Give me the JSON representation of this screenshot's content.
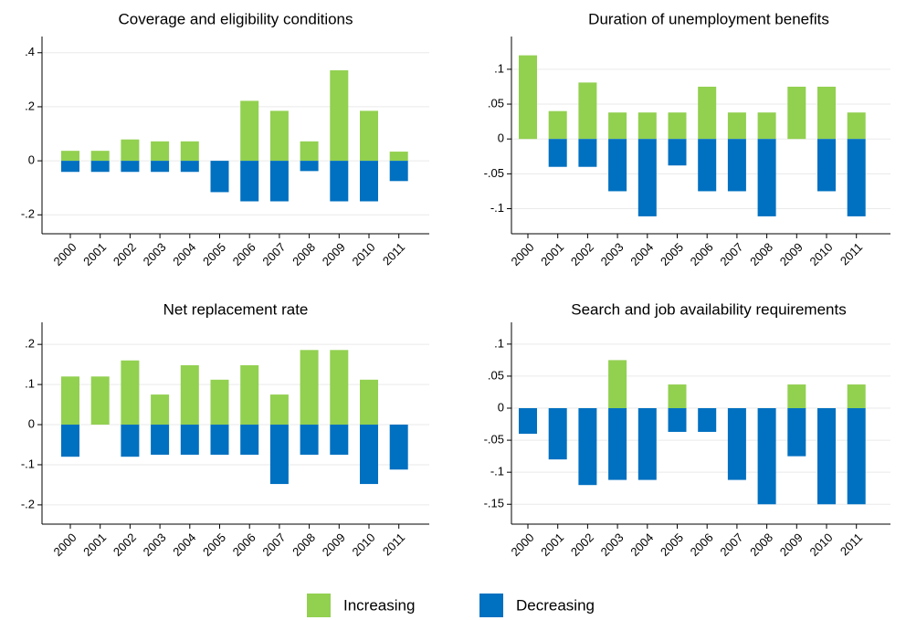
{
  "chart_data": [
    {
      "type": "bar",
      "title": "Coverage and eligibility conditions",
      "categories": [
        "2000",
        "2001",
        "2002",
        "2003",
        "2004",
        "2005",
        "2006",
        "2007",
        "2008",
        "2009",
        "2010",
        "2011"
      ],
      "series": [
        {
          "values": [
            0.037,
            0.037,
            0.079,
            0.072,
            0.072,
            0,
            0.222,
            0.185,
            0.072,
            0.335,
            0.185,
            0.034
          ]
        },
        {
          "values": [
            -0.041,
            -0.041,
            -0.041,
            -0.041,
            -0.041,
            -0.116,
            -0.15,
            -0.15,
            -0.038,
            -0.15,
            -0.15,
            -0.075
          ]
        }
      ],
      "ylim": [
        -0.27,
        0.46
      ],
      "yticks": [
        {
          "value": -0.2,
          "label": "-.2"
        },
        0,
        {
          "value": 0.2,
          "label": ".2"
        },
        {
          "value": 0.4,
          "label": ".4"
        }
      ],
      "grid": true
    },
    {
      "type": "bar",
      "title": "Duration of unemployment benefits",
      "categories": [
        "2000",
        "2001",
        "2002",
        "2003",
        "2004",
        "2005",
        "2006",
        "2007",
        "2008",
        "2009",
        "2010",
        "2011"
      ],
      "series": [
        {
          "values": [
            0.12,
            0.04,
            0.081,
            0.038,
            0.038,
            0.038,
            0.075,
            0.038,
            0.038,
            0.075,
            0.075,
            0.038
          ]
        },
        {
          "values": [
            0,
            -0.04,
            -0.04,
            -0.075,
            -0.111,
            -0.038,
            -0.075,
            -0.075,
            -0.111,
            0,
            -0.075,
            -0.111
          ]
        }
      ],
      "ylim": [
        -0.136,
        0.147
      ],
      "yticks": [
        {
          "value": -0.1,
          "label": "-.1"
        },
        {
          "value": -0.05,
          "label": "-.05"
        },
        0,
        {
          "value": 0.05,
          "label": ".05"
        },
        {
          "value": 0.1,
          "label": ".1"
        }
      ],
      "grid": true
    },
    {
      "type": "bar",
      "title": "Net replacement rate",
      "categories": [
        "2000",
        "2001",
        "2002",
        "2003",
        "2004",
        "2005",
        "2006",
        "2007",
        "2008",
        "2009",
        "2010",
        "2011"
      ],
      "series": [
        {
          "values": [
            0.12,
            0.12,
            0.16,
            0.075,
            0.148,
            0.112,
            0.148,
            0.075,
            0.186,
            0.186,
            0.112,
            0
          ]
        },
        {
          "values": [
            -0.08,
            0,
            -0.08,
            -0.075,
            -0.075,
            -0.075,
            -0.075,
            -0.148,
            -0.075,
            -0.075,
            -0.148,
            -0.112
          ]
        }
      ],
      "ylim": [
        -0.248,
        0.255
      ],
      "yticks": [
        {
          "value": -0.2,
          "label": "-.2"
        },
        {
          "value": -0.1,
          "label": "-.1"
        },
        0,
        {
          "value": 0.1,
          "label": ".1"
        },
        {
          "value": 0.2,
          "label": ".2"
        }
      ],
      "grid": true
    },
    {
      "type": "bar",
      "title": "Search and job availability requirements",
      "categories": [
        "2000",
        "2001",
        "2002",
        "2003",
        "2004",
        "2005",
        "2006",
        "2007",
        "2008",
        "2009",
        "2010",
        "2011"
      ],
      "series": [
        {
          "values": [
            0,
            0,
            0,
            0.075,
            0,
            0.037,
            0,
            0,
            0,
            0.037,
            0,
            0.037
          ]
        },
        {
          "values": [
            -0.04,
            -0.08,
            -0.12,
            -0.112,
            -0.112,
            -0.037,
            -0.037,
            -0.112,
            -0.15,
            -0.075,
            -0.15,
            -0.15
          ]
        }
      ],
      "ylim": [
        -0.181,
        0.134
      ],
      "yticks": [
        {
          "value": -0.15,
          "label": "-.15"
        },
        {
          "value": -0.1,
          "label": "-.1"
        },
        {
          "value": -0.05,
          "label": "-.05"
        },
        0,
        {
          "value": 0.05,
          "label": ".05"
        },
        {
          "value": 0.1,
          "label": ".1"
        }
      ],
      "grid": true
    }
  ],
  "legend": [
    {
      "name": "Increasing",
      "color": "#92d050"
    },
    {
      "name": "Decreasing",
      "color": "#0070c0"
    }
  ]
}
